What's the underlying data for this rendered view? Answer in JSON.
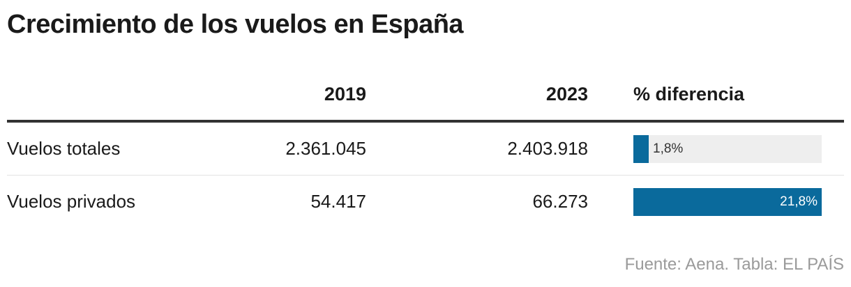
{
  "title": "Crecimiento de los vuelos en España",
  "columns": {
    "label": "",
    "y2019": "2019",
    "y2023": "2023",
    "diff": "% diferencia"
  },
  "source": "Fuente: Aena. Tabla: EL PAÍS",
  "colors": {
    "bar": "#0a6a9c",
    "track": "#eeeeee"
  },
  "chart_data": {
    "type": "table",
    "title": "Crecimiento de los vuelos en España",
    "columns": [
      "",
      "2019",
      "2023",
      "% diferencia"
    ],
    "rows": [
      {
        "label": "Vuelos totales",
        "v2019": "2.361.045",
        "v2023": "2.403.918",
        "diff": 1.8,
        "diff_label": "1,8%"
      },
      {
        "label": "Vuelos privados",
        "v2019": "54.417",
        "v2023": "66.273",
        "diff": 21.8,
        "diff_label": "21,8%"
      }
    ],
    "bar_scale_max": 21.8
  }
}
